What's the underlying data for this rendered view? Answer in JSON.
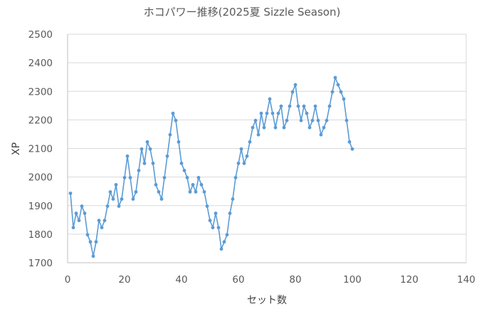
{
  "chart_data": {
    "type": "line",
    "title": "ホコパワー推移(2025夏 Sizzle Season)",
    "xlabel": "セット数",
    "ylabel": "XP",
    "xlim": [
      0,
      140
    ],
    "ylim": [
      1700,
      2500
    ],
    "x_ticks": [
      0,
      20,
      40,
      60,
      80,
      100,
      120,
      140
    ],
    "y_ticks": [
      1700,
      1800,
      1900,
      2000,
      2100,
      2200,
      2300,
      2400,
      2500
    ],
    "grid": "horizontal",
    "legend": "none",
    "series_color": "#5b9bd5",
    "series": [
      {
        "x": [
          1,
          2,
          3,
          4,
          5,
          6,
          7,
          8,
          9,
          10,
          11,
          12,
          13,
          14,
          15,
          16,
          17,
          18,
          19,
          20,
          21,
          22,
          23,
          24,
          25,
          26,
          27,
          28,
          29,
          30,
          31,
          32,
          33,
          34,
          35,
          36,
          37,
          38,
          39,
          40,
          41,
          42,
          43,
          44,
          45,
          46,
          47,
          48,
          49,
          50,
          51,
          52,
          53,
          54,
          55,
          56,
          57,
          58,
          59,
          60,
          61,
          62,
          63,
          64,
          65,
          66,
          67,
          68,
          69,
          70,
          71,
          72,
          73,
          74,
          75,
          76,
          77,
          78,
          79,
          80,
          81,
          82,
          83,
          84,
          85,
          86,
          87,
          88,
          89,
          90,
          91,
          92,
          93,
          94,
          95,
          96,
          97,
          98,
          99,
          100
        ],
        "values": [
          1943,
          1823,
          1873,
          1848,
          1898,
          1873,
          1798,
          1773,
          1723,
          1773,
          1848,
          1823,
          1848,
          1898,
          1948,
          1923,
          1973,
          1898,
          1923,
          1998,
          2073,
          1998,
          1923,
          1948,
          2023,
          2098,
          2048,
          2123,
          2098,
          2048,
          1973,
          1948,
          1923,
          1998,
          2073,
          2148,
          2223,
          2198,
          2123,
          2048,
          2023,
          1998,
          1948,
          1973,
          1948,
          1998,
          1973,
          1948,
          1898,
          1848,
          1823,
          1873,
          1823,
          1748,
          1773,
          1798,
          1873,
          1923,
          1998,
          2048,
          2098,
          2048,
          2073,
          2123,
          2173,
          2198,
          2148,
          2223,
          2173,
          2223,
          2273,
          2223,
          2173,
          2223,
          2248,
          2173,
          2198,
          2248,
          2298,
          2323,
          2248,
          2198,
          2248,
          2223,
          2173,
          2198,
          2248,
          2198,
          2148,
          2173,
          2198,
          2248,
          2298,
          2348,
          2323,
          2298,
          2273,
          2198,
          2123,
          2098
        ]
      }
    ]
  }
}
